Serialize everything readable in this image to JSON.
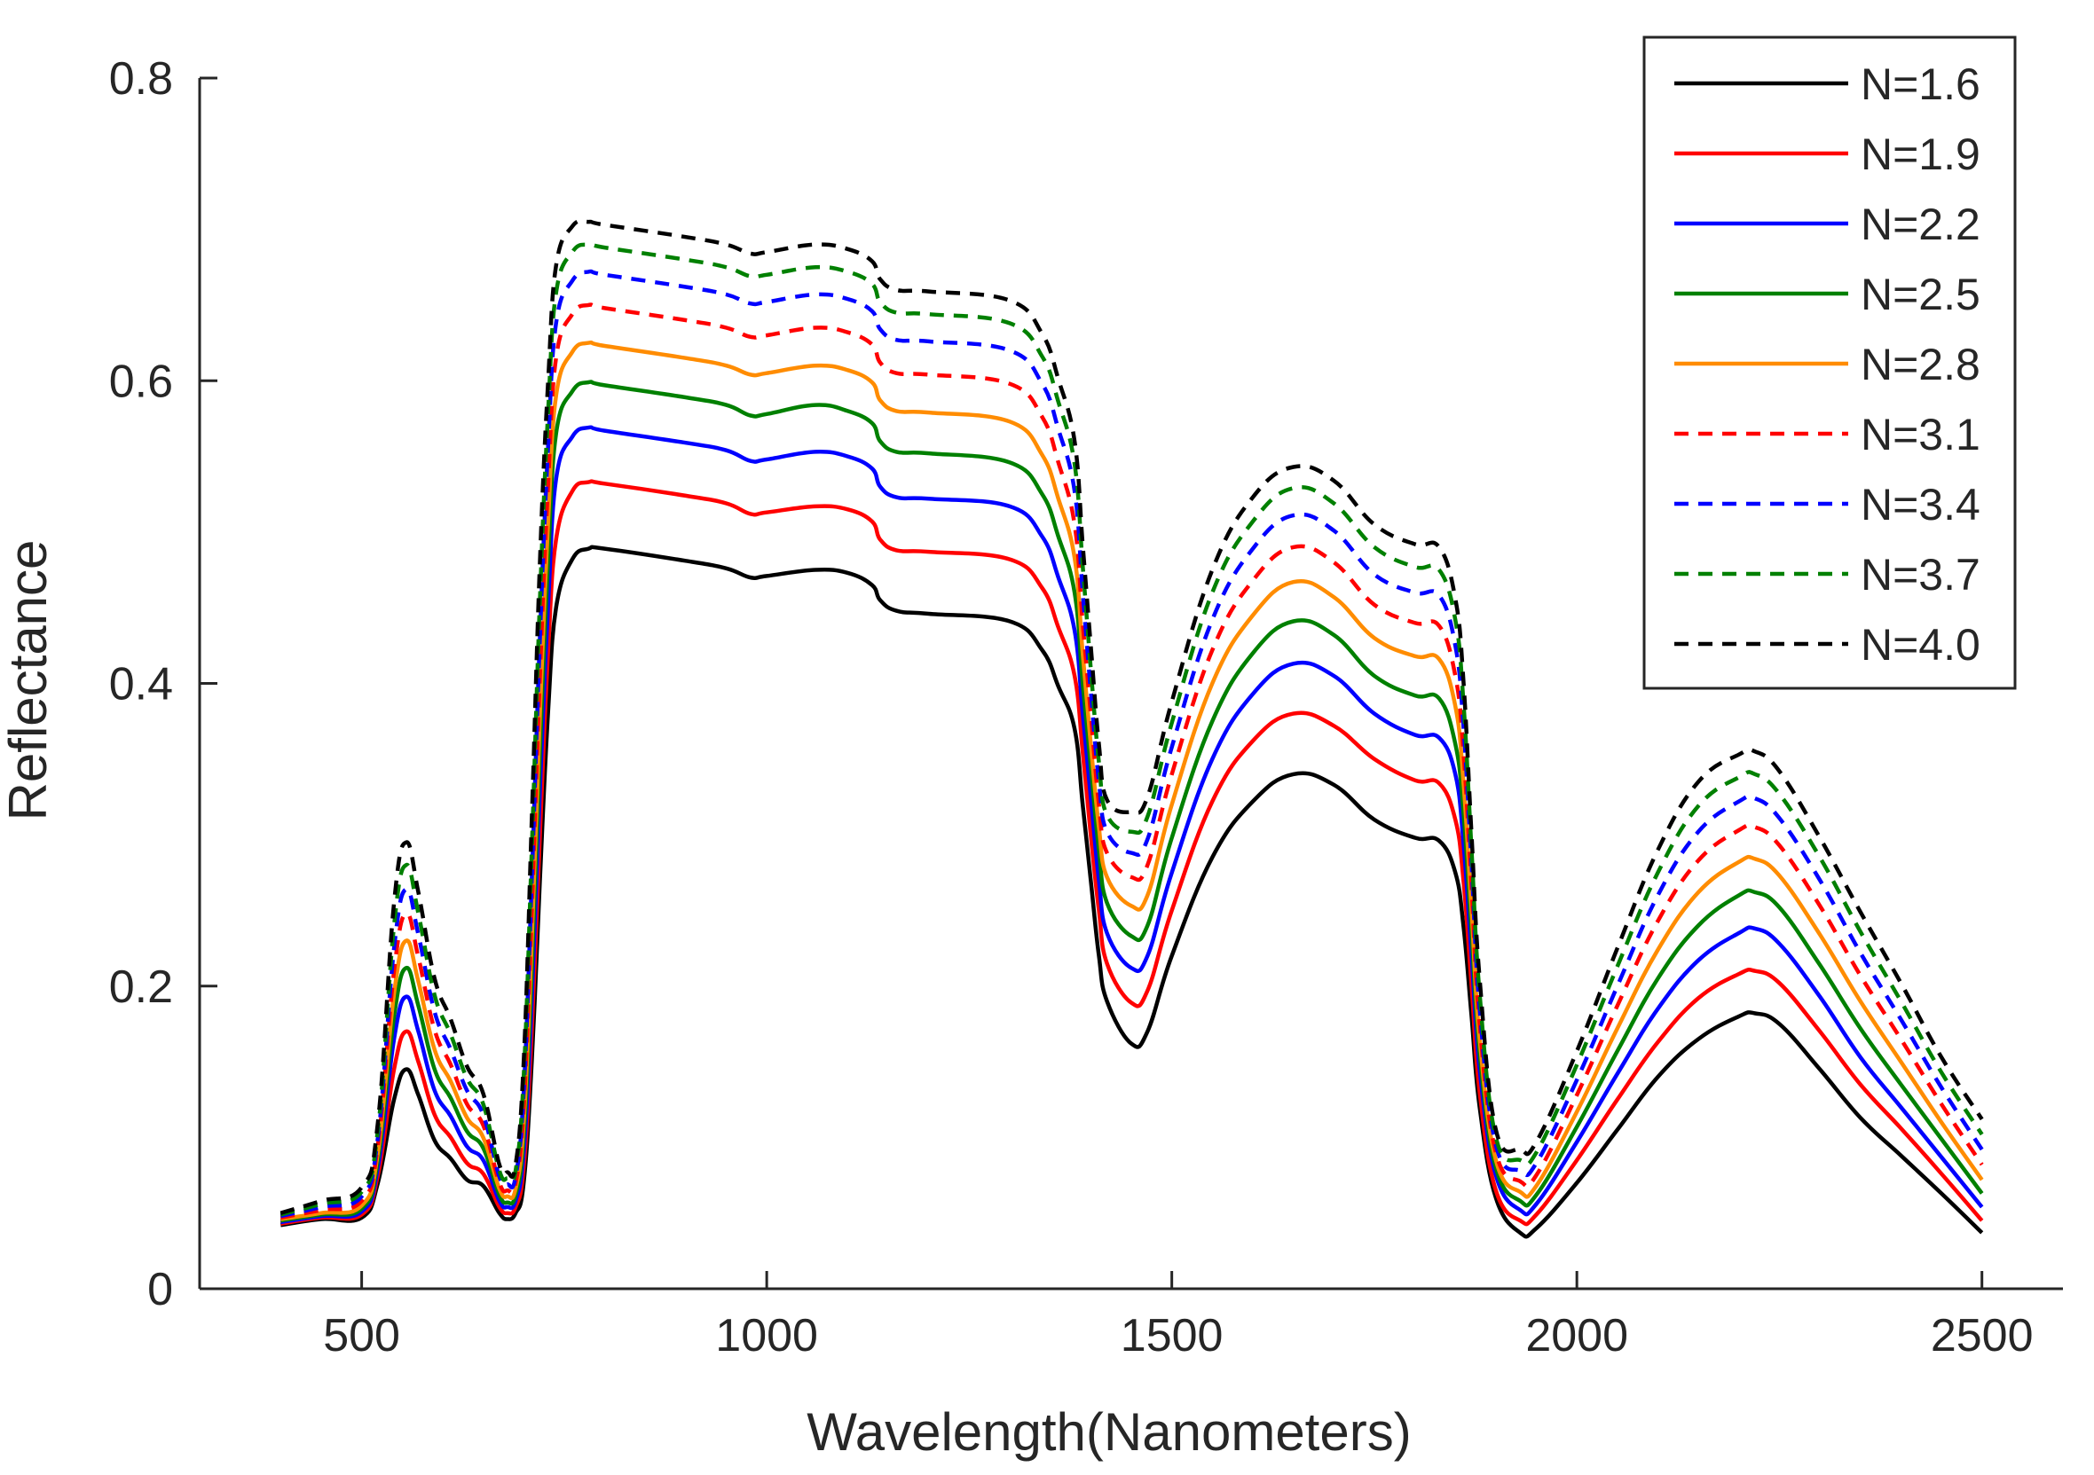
{
  "chart_data": {
    "type": "line",
    "title": "",
    "xlabel": "Wavelength(Nanometers)",
    "ylabel": "Reflectance",
    "xlim": [
      300,
      2600
    ],
    "ylim": [
      0,
      0.8
    ],
    "xticks": [
      500,
      1000,
      1500,
      2000,
      2500
    ],
    "xtick_labels": [
      "500",
      "1000",
      "1500",
      "2000",
      "2500"
    ],
    "yticks": [
      0,
      0.2,
      0.4,
      0.6,
      0.8
    ],
    "ytick_labels": [
      "0",
      "0.2",
      "0.4",
      "0.6",
      "0.8"
    ],
    "grid": false,
    "legend_position": "top-right",
    "x": [
      400,
      450,
      500,
      520,
      540,
      555,
      570,
      590,
      610,
      630,
      650,
      670,
      680,
      690,
      700,
      710,
      720,
      730,
      740,
      760,
      780,
      800,
      900,
      950,
      980,
      1000,
      1060,
      1100,
      1130,
      1140,
      1160,
      1200,
      1300,
      1340,
      1360,
      1380,
      1390,
      1400,
      1410,
      1420,
      1450,
      1470,
      1500,
      1550,
      1600,
      1650,
      1700,
      1750,
      1800,
      1830,
      1850,
      1860,
      1870,
      1880,
      1900,
      1930,
      1950,
      2000,
      2050,
      2100,
      2150,
      2200,
      2220,
      2250,
      2300,
      2350,
      2400,
      2450,
      2500
    ],
    "series": [
      {
        "name": "N=1.6",
        "color": "#000000",
        "dashed": false,
        "values": [
          0.042,
          0.046,
          0.047,
          0.07,
          0.125,
          0.145,
          0.128,
          0.098,
          0.086,
          0.072,
          0.068,
          0.05,
          0.046,
          0.05,
          0.07,
          0.15,
          0.27,
          0.38,
          0.45,
          0.482,
          0.489,
          0.489,
          0.481,
          0.476,
          0.47,
          0.471,
          0.475,
          0.473,
          0.465,
          0.455,
          0.448,
          0.446,
          0.441,
          0.422,
          0.398,
          0.37,
          0.32,
          0.27,
          0.22,
          0.19,
          0.162,
          0.17,
          0.22,
          0.285,
          0.322,
          0.34,
          0.333,
          0.31,
          0.298,
          0.296,
          0.275,
          0.24,
          0.18,
          0.12,
          0.06,
          0.037,
          0.04,
          0.07,
          0.105,
          0.14,
          0.165,
          0.18,
          0.182,
          0.175,
          0.145,
          0.113,
          0.088,
          0.063,
          0.037
        ]
      },
      {
        "name": "N=1.9",
        "color": "#ff0000",
        "dashed": false,
        "values": [
          0.043,
          0.047,
          0.049,
          0.075,
          0.145,
          0.17,
          0.15,
          0.115,
          0.1,
          0.083,
          0.076,
          0.054,
          0.05,
          0.054,
          0.08,
          0.17,
          0.3,
          0.42,
          0.495,
          0.527,
          0.533,
          0.532,
          0.524,
          0.519,
          0.512,
          0.513,
          0.517,
          0.515,
          0.507,
          0.495,
          0.488,
          0.487,
          0.482,
          0.463,
          0.437,
          0.405,
          0.355,
          0.3,
          0.25,
          0.215,
          0.189,
          0.197,
          0.25,
          0.322,
          0.362,
          0.38,
          0.372,
          0.35,
          0.336,
          0.334,
          0.31,
          0.27,
          0.2,
          0.13,
          0.065,
          0.045,
          0.049,
          0.085,
          0.125,
          0.163,
          0.192,
          0.208,
          0.21,
          0.202,
          0.17,
          0.135,
          0.106,
          0.076,
          0.045
        ]
      },
      {
        "name": "N=2.2",
        "color": "#0000ff",
        "dashed": false,
        "values": [
          0.044,
          0.048,
          0.051,
          0.08,
          0.165,
          0.193,
          0.17,
          0.131,
          0.114,
          0.094,
          0.085,
          0.058,
          0.054,
          0.058,
          0.09,
          0.19,
          0.33,
          0.45,
          0.535,
          0.563,
          0.569,
          0.567,
          0.559,
          0.554,
          0.547,
          0.548,
          0.553,
          0.55,
          0.542,
          0.53,
          0.523,
          0.522,
          0.517,
          0.497,
          0.47,
          0.435,
          0.38,
          0.325,
          0.27,
          0.235,
          0.212,
          0.22,
          0.275,
          0.35,
          0.393,
          0.413,
          0.405,
          0.38,
          0.366,
          0.364,
          0.34,
          0.295,
          0.22,
          0.145,
          0.075,
          0.052,
          0.056,
          0.097,
          0.142,
          0.185,
          0.217,
          0.235,
          0.238,
          0.228,
          0.193,
          0.153,
          0.12,
          0.087,
          0.054
        ]
      },
      {
        "name": "N=2.5",
        "color": "#008000",
        "dashed": false,
        "values": [
          0.045,
          0.049,
          0.053,
          0.085,
          0.18,
          0.212,
          0.187,
          0.145,
          0.126,
          0.104,
          0.093,
          0.062,
          0.057,
          0.062,
          0.1,
          0.21,
          0.355,
          0.48,
          0.565,
          0.593,
          0.599,
          0.597,
          0.589,
          0.584,
          0.577,
          0.578,
          0.584,
          0.58,
          0.572,
          0.56,
          0.553,
          0.552,
          0.546,
          0.525,
          0.497,
          0.46,
          0.4,
          0.345,
          0.29,
          0.255,
          0.233,
          0.24,
          0.298,
          0.375,
          0.42,
          0.441,
          0.432,
          0.405,
          0.392,
          0.39,
          0.36,
          0.315,
          0.235,
          0.155,
          0.08,
          0.058,
          0.062,
          0.107,
          0.157,
          0.205,
          0.24,
          0.26,
          0.262,
          0.252,
          0.214,
          0.172,
          0.135,
          0.099,
          0.063
        ]
      },
      {
        "name": "N=2.8",
        "color": "#ff8c00",
        "dashed": false,
        "values": [
          0.046,
          0.05,
          0.055,
          0.09,
          0.195,
          0.23,
          0.203,
          0.158,
          0.137,
          0.113,
          0.1,
          0.066,
          0.061,
          0.066,
          0.11,
          0.23,
          0.38,
          0.505,
          0.59,
          0.619,
          0.625,
          0.623,
          0.615,
          0.61,
          0.604,
          0.605,
          0.61,
          0.607,
          0.599,
          0.587,
          0.58,
          0.579,
          0.573,
          0.551,
          0.522,
          0.483,
          0.42,
          0.36,
          0.305,
          0.272,
          0.253,
          0.26,
          0.32,
          0.4,
          0.445,
          0.467,
          0.457,
          0.43,
          0.418,
          0.416,
          0.385,
          0.335,
          0.25,
          0.165,
          0.085,
          0.064,
          0.068,
          0.117,
          0.172,
          0.224,
          0.262,
          0.282,
          0.284,
          0.273,
          0.234,
          0.19,
          0.15,
          0.11,
          0.072
        ]
      },
      {
        "name": "N=3.1",
        "color": "#ff0000",
        "dashed": true,
        "values": [
          0.047,
          0.052,
          0.058,
          0.095,
          0.21,
          0.248,
          0.219,
          0.171,
          0.148,
          0.122,
          0.108,
          0.07,
          0.065,
          0.07,
          0.12,
          0.25,
          0.405,
          0.53,
          0.615,
          0.644,
          0.65,
          0.648,
          0.64,
          0.635,
          0.629,
          0.63,
          0.635,
          0.632,
          0.624,
          0.612,
          0.605,
          0.604,
          0.598,
          0.576,
          0.546,
          0.505,
          0.44,
          0.38,
          0.32,
          0.288,
          0.272,
          0.28,
          0.34,
          0.422,
          0.468,
          0.49,
          0.48,
          0.452,
          0.44,
          0.438,
          0.405,
          0.355,
          0.265,
          0.175,
          0.09,
          0.071,
          0.075,
          0.128,
          0.187,
          0.243,
          0.283,
          0.303,
          0.305,
          0.293,
          0.253,
          0.207,
          0.165,
          0.122,
          0.082
        ]
      },
      {
        "name": "N=3.4",
        "color": "#0000ff",
        "dashed": true,
        "values": [
          0.048,
          0.054,
          0.061,
          0.1,
          0.225,
          0.264,
          0.234,
          0.183,
          0.158,
          0.131,
          0.115,
          0.074,
          0.069,
          0.074,
          0.13,
          0.27,
          0.43,
          0.555,
          0.638,
          0.666,
          0.672,
          0.67,
          0.662,
          0.657,
          0.651,
          0.652,
          0.657,
          0.654,
          0.646,
          0.634,
          0.627,
          0.626,
          0.62,
          0.598,
          0.568,
          0.527,
          0.46,
          0.395,
          0.335,
          0.302,
          0.288,
          0.297,
          0.358,
          0.442,
          0.489,
          0.511,
          0.501,
          0.472,
          0.46,
          0.458,
          0.425,
          0.372,
          0.28,
          0.185,
          0.095,
          0.078,
          0.083,
          0.138,
          0.2,
          0.26,
          0.302,
          0.322,
          0.324,
          0.311,
          0.27,
          0.222,
          0.178,
          0.133,
          0.092
        ]
      },
      {
        "name": "N=3.7",
        "color": "#008000",
        "dashed": true,
        "values": [
          0.049,
          0.056,
          0.064,
          0.105,
          0.24,
          0.28,
          0.248,
          0.194,
          0.168,
          0.139,
          0.122,
          0.078,
          0.073,
          0.078,
          0.14,
          0.29,
          0.455,
          0.578,
          0.658,
          0.685,
          0.69,
          0.688,
          0.68,
          0.675,
          0.669,
          0.67,
          0.675,
          0.672,
          0.664,
          0.652,
          0.645,
          0.644,
          0.638,
          0.616,
          0.586,
          0.545,
          0.478,
          0.41,
          0.348,
          0.313,
          0.302,
          0.312,
          0.374,
          0.46,
          0.507,
          0.529,
          0.519,
          0.49,
          0.477,
          0.475,
          0.442,
          0.388,
          0.29,
          0.195,
          0.1,
          0.085,
          0.09,
          0.148,
          0.213,
          0.275,
          0.319,
          0.338,
          0.34,
          0.327,
          0.285,
          0.236,
          0.19,
          0.143,
          0.102
        ]
      },
      {
        "name": "N=4.0",
        "color": "#000000",
        "dashed": true,
        "values": [
          0.05,
          0.058,
          0.067,
          0.11,
          0.255,
          0.295,
          0.262,
          0.205,
          0.178,
          0.147,
          0.129,
          0.082,
          0.077,
          0.082,
          0.15,
          0.31,
          0.48,
          0.598,
          0.676,
          0.702,
          0.705,
          0.703,
          0.695,
          0.69,
          0.684,
          0.685,
          0.69,
          0.687,
          0.679,
          0.667,
          0.66,
          0.659,
          0.653,
          0.631,
          0.601,
          0.56,
          0.492,
          0.425,
          0.36,
          0.323,
          0.315,
          0.325,
          0.388,
          0.475,
          0.523,
          0.543,
          0.534,
          0.505,
          0.492,
          0.49,
          0.456,
          0.402,
          0.3,
          0.205,
          0.105,
          0.092,
          0.097,
          0.157,
          0.225,
          0.29,
          0.335,
          0.353,
          0.355,
          0.342,
          0.298,
          0.249,
          0.202,
          0.153,
          0.112
        ]
      }
    ]
  }
}
